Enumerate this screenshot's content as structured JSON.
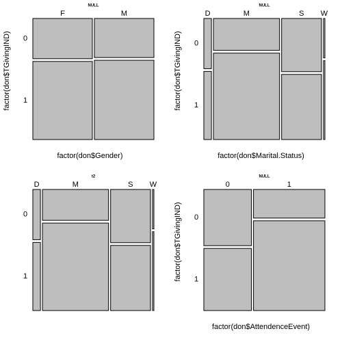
{
  "chart_data": [
    {
      "type": "mosaic",
      "title": "NULL",
      "xlabel": "factor(don$Gender)",
      "ylabel": "factor(don$TGivingIND)",
      "categories": [
        "F",
        "M"
      ],
      "series": [
        {
          "name": "0",
          "color": "#bebebe",
          "values": [
            0.17,
            0.165
          ]
        },
        {
          "name": "1",
          "color": "#bebebe",
          "values": [
            0.33,
            0.335
          ]
        }
      ]
    },
    {
      "type": "mosaic",
      "title": "NULL",
      "xlabel": "factor(don$Marital.Status)",
      "ylabel": "factor(don$TGivingIND)",
      "categories": [
        "D",
        "M",
        "S",
        "W"
      ],
      "series": [
        {
          "name": "0",
          "color": "#bebebe",
          "values": [
            0.028,
            0.155,
            0.156,
            0.004
          ]
        },
        {
          "name": "1",
          "color": "#bebebe",
          "values": [
            0.038,
            0.42,
            0.191,
            0.008
          ]
        }
      ]
    },
    {
      "type": "mosaic",
      "title": "t2",
      "categories": [
        "D",
        "M",
        "S",
        "W"
      ],
      "series": [
        {
          "name": "0",
          "color": "#bebebe",
          "values": [
            0.028,
            0.15,
            0.156,
            0.004
          ]
        },
        {
          "name": "1",
          "color": "#bebebe",
          "values": [
            0.038,
            0.425,
            0.191,
            0.008
          ]
        }
      ]
    },
    {
      "type": "mosaic",
      "title": "NULL",
      "xlabel": "factor(don$AttendenceEvent)",
      "ylabel": "factor(don$TGivingIND)",
      "categories": [
        "0",
        "1"
      ],
      "series": [
        {
          "name": "0",
          "color": "#bebebe",
          "values": [
            0.19,
            0.145
          ]
        },
        {
          "name": "1",
          "color": "#bebebe",
          "values": [
            0.21,
            0.455
          ]
        }
      ]
    }
  ]
}
